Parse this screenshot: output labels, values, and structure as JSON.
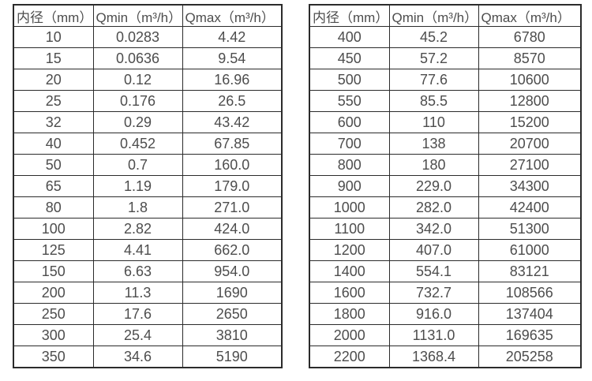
{
  "colors": {
    "background": "#ffffff",
    "text": "#4d4d4d",
    "border": "#2b2b2b"
  },
  "tables": [
    {
      "name": "flow-spec-table-small-diameters",
      "headers": [
        "内径（mm）",
        "Qmin（m³/h）",
        "Qmax（m³/h）"
      ],
      "rows": [
        [
          "10",
          "0.0283",
          "4.42"
        ],
        [
          "15",
          "0.0636",
          "9.54"
        ],
        [
          "20",
          "0.12",
          "16.96"
        ],
        [
          "25",
          "0.176",
          "26.5"
        ],
        [
          "32",
          "0.29",
          "43.42"
        ],
        [
          "40",
          "0.452",
          "67.85"
        ],
        [
          "50",
          "0.7",
          "160.0"
        ],
        [
          "65",
          "1.19",
          "179.0"
        ],
        [
          "80",
          "1.8",
          "271.0"
        ],
        [
          "100",
          "2.82",
          "424.0"
        ],
        [
          "125",
          "4.41",
          "662.0"
        ],
        [
          "150",
          "6.63",
          "954.0"
        ],
        [
          "200",
          "11.3",
          "1690"
        ],
        [
          "250",
          "17.6",
          "2650"
        ],
        [
          "300",
          "25.4",
          "3810"
        ],
        [
          "350",
          "34.6",
          "5190"
        ]
      ]
    },
    {
      "name": "flow-spec-table-large-diameters",
      "headers": [
        "内径（mm）",
        "Qmin（m³/h）",
        "Qmax（m³/h）"
      ],
      "rows": [
        [
          "400",
          "45.2",
          "6780"
        ],
        [
          "450",
          "57.2",
          "8570"
        ],
        [
          "500",
          "77.6",
          "10600"
        ],
        [
          "550",
          "85.5",
          "12800"
        ],
        [
          "600",
          "110",
          "15200"
        ],
        [
          "700",
          "138",
          "20700"
        ],
        [
          "800",
          "180",
          "27100"
        ],
        [
          "900",
          "229.0",
          "34300"
        ],
        [
          "1000",
          "282.0",
          "42400"
        ],
        [
          "1100",
          "342.0",
          "51300"
        ],
        [
          "1200",
          "407.0",
          "61000"
        ],
        [
          "1400",
          "554.1",
          "83121"
        ],
        [
          "1600",
          "732.7",
          "108566"
        ],
        [
          "1800",
          "916.0",
          "137404"
        ],
        [
          "2000",
          "1131.0",
          "169635"
        ],
        [
          "2200",
          "1368.4",
          "205258"
        ]
      ]
    }
  ]
}
